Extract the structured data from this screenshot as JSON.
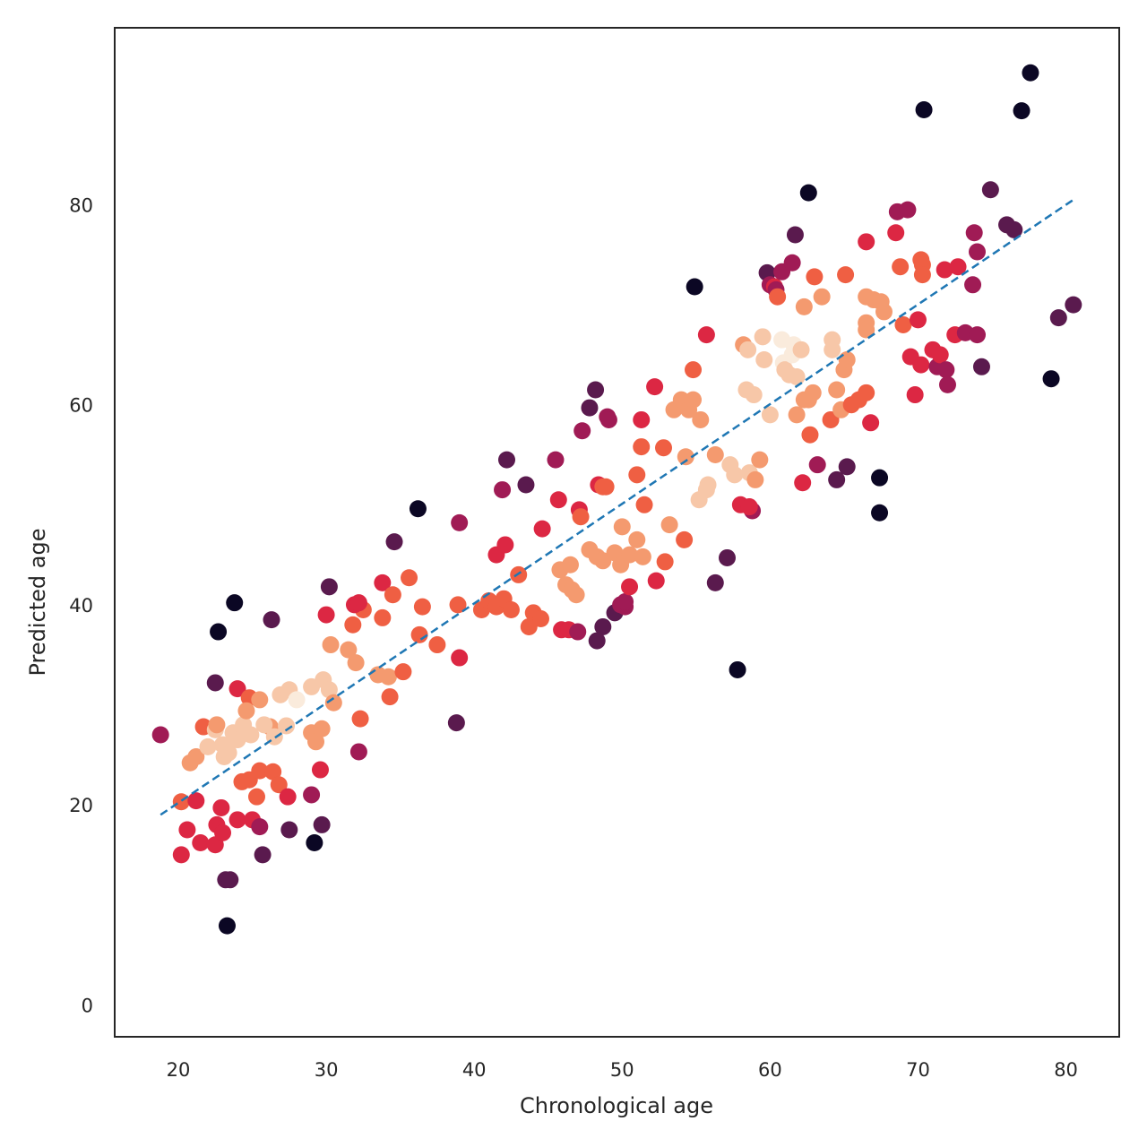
{
  "chart_data": {
    "type": "scatter",
    "title": "",
    "xlabel": "Chronological age",
    "ylabel": "Predicted age",
    "xlim": [
      15.7,
      83.6
    ],
    "ylim": [
      -3.2,
      97.7
    ],
    "xticks": [
      20,
      30,
      40,
      50,
      60,
      70,
      80
    ],
    "yticks": [
      0,
      20,
      40,
      60,
      80
    ],
    "grid": false,
    "legend": "none",
    "reference_line": {
      "x": [
        18.8,
        80.5
      ],
      "y": [
        19.0,
        80.5
      ],
      "color": "#1f77b4",
      "style": "dashed"
    },
    "color_scale": [
      "#0b0724",
      "#5a1a4e",
      "#a01b55",
      "#dc2743",
      "#ef5f43",
      "#f49a6f",
      "#f7c7a8",
      "#faebdc"
    ],
    "points": [
      [
        18.8,
        27.0,
        2
      ],
      [
        20.2,
        15.0,
        3
      ],
      [
        20.6,
        17.5,
        3
      ],
      [
        21.5,
        16.2,
        3
      ],
      [
        22.5,
        16.0,
        3
      ],
      [
        22.6,
        18.0,
        3
      ],
      [
        23.0,
        17.2,
        3
      ],
      [
        23.2,
        12.5,
        1
      ],
      [
        23.5,
        12.5,
        1
      ],
      [
        23.3,
        7.9,
        0
      ],
      [
        24.0,
        18.5,
        3
      ],
      [
        24.0,
        31.6,
        3
      ],
      [
        23.8,
        40.2,
        0
      ],
      [
        22.7,
        37.3,
        0
      ],
      [
        22.5,
        32.2,
        1
      ],
      [
        25.0,
        18.5,
        3
      ],
      [
        25.5,
        17.8,
        2
      ],
      [
        25.7,
        15.0,
        1
      ],
      [
        26.3,
        38.5,
        1
      ],
      [
        27.5,
        17.5,
        1
      ],
      [
        29.2,
        16.2,
        0
      ],
      [
        29.0,
        21.0,
        2
      ],
      [
        29.7,
        18.0,
        1
      ],
      [
        30.0,
        39.0,
        3
      ],
      [
        30.2,
        41.8,
        1
      ],
      [
        29.6,
        23.5,
        3
      ],
      [
        32.2,
        25.3,
        2
      ],
      [
        32.3,
        28.6,
        4
      ],
      [
        33.8,
        42.2,
        3
      ],
      [
        34.5,
        41.0,
        4
      ],
      [
        35.6,
        42.7,
        4
      ],
      [
        34.6,
        46.3,
        1
      ],
      [
        36.2,
        49.6,
        0
      ],
      [
        39.0,
        48.2,
        2
      ],
      [
        38.8,
        28.2,
        1
      ],
      [
        39.0,
        34.7,
        3
      ],
      [
        21.7,
        27.8,
        4
      ],
      [
        20.2,
        20.3,
        4
      ],
      [
        21.2,
        20.4,
        3
      ],
      [
        22.9,
        19.7,
        3
      ],
      [
        24.3,
        22.3,
        4
      ],
      [
        24.8,
        22.5,
        4
      ],
      [
        25.3,
        20.8,
        4
      ],
      [
        25.5,
        23.4,
        4
      ],
      [
        26.4,
        23.3,
        4
      ],
      [
        26.8,
        22.0,
        4
      ],
      [
        27.4,
        20.8,
        3
      ],
      [
        24.8,
        30.7,
        4
      ],
      [
        25.5,
        30.5,
        5
      ],
      [
        26.2,
        27.8,
        5
      ],
      [
        26.9,
        31.0,
        6
      ],
      [
        27.5,
        31.5,
        6
      ],
      [
        28.0,
        30.5,
        7
      ],
      [
        29.0,
        31.8,
        6
      ],
      [
        29.8,
        32.5,
        6
      ],
      [
        30.2,
        31.5,
        6
      ],
      [
        30.5,
        30.2,
        5
      ],
      [
        29.0,
        27.2,
        5
      ],
      [
        29.3,
        26.3,
        5
      ],
      [
        29.7,
        27.6,
        5
      ],
      [
        30.3,
        36.0,
        5
      ],
      [
        31.5,
        35.5,
        5
      ],
      [
        32.0,
        34.2,
        5
      ],
      [
        31.8,
        38.0,
        4
      ],
      [
        32.5,
        39.5,
        4
      ],
      [
        33.8,
        38.7,
        4
      ],
      [
        31.9,
        40.0,
        3
      ],
      [
        32.2,
        40.2,
        3
      ],
      [
        33.5,
        33.0,
        5
      ],
      [
        34.2,
        32.8,
        5
      ],
      [
        35.2,
        33.3,
        4
      ],
      [
        34.3,
        30.8,
        4
      ],
      [
        36.3,
        37.0,
        4
      ],
      [
        36.5,
        39.8,
        4
      ],
      [
        37.5,
        36.0,
        4
      ],
      [
        38.9,
        40.0,
        4
      ],
      [
        20.8,
        24.2,
        5
      ],
      [
        21.2,
        24.8,
        5
      ],
      [
        22.0,
        25.8,
        6
      ],
      [
        22.5,
        27.5,
        6
      ],
      [
        22.6,
        28.0,
        5
      ],
      [
        23.0,
        26.0,
        6
      ],
      [
        23.1,
        24.8,
        6
      ],
      [
        23.4,
        25.2,
        6
      ],
      [
        23.7,
        27.2,
        6
      ],
      [
        24.0,
        26.5,
        6
      ],
      [
        24.4,
        28.0,
        6
      ],
      [
        24.6,
        29.4,
        5
      ],
      [
        24.9,
        27.0,
        6
      ],
      [
        25.8,
        28.0,
        6
      ],
      [
        26.5,
        26.8,
        6
      ],
      [
        27.3,
        27.9,
        6
      ],
      [
        40.5,
        39.5,
        4
      ],
      [
        41.0,
        40.4,
        4
      ],
      [
        41.5,
        39.8,
        4
      ],
      [
        42.0,
        40.6,
        4
      ],
      [
        42.5,
        39.5,
        4
      ],
      [
        41.5,
        45.0,
        3
      ],
      [
        42.1,
        46.0,
        3
      ],
      [
        42.2,
        54.5,
        1
      ],
      [
        41.9,
        51.5,
        2
      ],
      [
        43.0,
        43.0,
        4
      ],
      [
        43.5,
        52.0,
        1
      ],
      [
        43.7,
        37.8,
        4
      ],
      [
        44.0,
        39.2,
        4
      ],
      [
        44.5,
        38.6,
        4
      ],
      [
        44.6,
        47.6,
        3
      ],
      [
        45.5,
        54.5,
        2
      ],
      [
        45.7,
        50.5,
        3
      ],
      [
        45.8,
        43.5,
        5
      ],
      [
        46.2,
        42.0,
        5
      ],
      [
        46.5,
        44.0,
        5
      ],
      [
        46.6,
        41.5,
        5
      ],
      [
        46.9,
        41.0,
        5
      ],
      [
        45.9,
        37.5,
        3
      ],
      [
        46.4,
        37.5,
        3
      ],
      [
        47.0,
        37.3,
        2
      ],
      [
        47.1,
        49.5,
        3
      ],
      [
        47.2,
        48.8,
        4
      ],
      [
        47.3,
        57.4,
        2
      ],
      [
        47.8,
        59.7,
        1
      ],
      [
        47.8,
        45.5,
        5
      ],
      [
        48.3,
        44.8,
        5
      ],
      [
        48.2,
        61.5,
        1
      ],
      [
        48.4,
        52.0,
        3
      ],
      [
        48.7,
        51.8,
        4
      ],
      [
        48.9,
        51.8,
        4
      ],
      [
        49.0,
        58.8,
        2
      ],
      [
        49.1,
        58.5,
        2
      ],
      [
        48.7,
        44.4,
        5
      ],
      [
        49.5,
        45.2,
        5
      ],
      [
        49.9,
        44.0,
        5
      ],
      [
        50.0,
        47.8,
        5
      ],
      [
        50.5,
        45.0,
        5
      ],
      [
        51.0,
        46.5,
        5
      ],
      [
        51.4,
        44.8,
        5
      ],
      [
        51.0,
        53.0,
        4
      ],
      [
        51.3,
        55.8,
        4
      ],
      [
        51.3,
        58.5,
        3
      ],
      [
        51.5,
        50.0,
        4
      ],
      [
        48.3,
        36.4,
        1
      ],
      [
        48.7,
        37.8,
        1
      ],
      [
        49.5,
        39.2,
        1
      ],
      [
        49.9,
        40.0,
        2
      ],
      [
        50.2,
        39.8,
        2
      ],
      [
        50.2,
        40.3,
        2
      ],
      [
        50.5,
        41.8,
        3
      ],
      [
        52.3,
        42.4,
        3
      ],
      [
        52.2,
        61.8,
        3
      ],
      [
        52.9,
        44.3,
        4
      ],
      [
        52.8,
        55.7,
        4
      ],
      [
        53.2,
        48.0,
        5
      ],
      [
        53.5,
        59.5,
        5
      ],
      [
        54.0,
        60.5,
        5
      ],
      [
        54.2,
        46.5,
        4
      ],
      [
        54.3,
        54.8,
        5
      ],
      [
        54.5,
        59.5,
        5
      ],
      [
        54.8,
        60.5,
        5
      ],
      [
        54.8,
        63.5,
        4
      ],
      [
        54.9,
        71.8,
        0
      ],
      [
        55.2,
        50.5,
        6
      ],
      [
        55.3,
        58.5,
        5
      ],
      [
        55.7,
        51.5,
        6
      ],
      [
        55.8,
        52.0,
        6
      ],
      [
        55.7,
        67.0,
        3
      ],
      [
        56.3,
        55.0,
        5
      ],
      [
        56.3,
        42.2,
        1
      ],
      [
        57.1,
        44.7,
        1
      ],
      [
        57.3,
        54.0,
        6
      ],
      [
        57.6,
        53.0,
        6
      ],
      [
        57.8,
        33.5,
        0
      ],
      [
        58.0,
        50.0,
        3
      ],
      [
        58.2,
        66.0,
        5
      ],
      [
        58.4,
        61.5,
        6
      ],
      [
        58.5,
        65.5,
        6
      ],
      [
        58.6,
        53.2,
        6
      ],
      [
        58.8,
        49.4,
        2
      ],
      [
        58.6,
        49.8,
        3
      ],
      [
        58.9,
        61.0,
        6
      ],
      [
        59.0,
        52.5,
        5
      ],
      [
        59.3,
        54.5,
        5
      ],
      [
        59.5,
        66.8,
        6
      ],
      [
        59.6,
        64.5,
        6
      ],
      [
        60.0,
        59.0,
        6
      ],
      [
        59.8,
        73.2,
        1
      ],
      [
        60.0,
        72.0,
        2
      ],
      [
        60.3,
        71.8,
        3
      ],
      [
        60.4,
        71.5,
        2
      ],
      [
        60.5,
        70.8,
        4
      ],
      [
        60.8,
        73.3,
        2
      ],
      [
        60.8,
        66.5,
        7
      ],
      [
        60.9,
        64.2,
        7
      ],
      [
        61.0,
        63.5,
        6
      ],
      [
        61.3,
        63.0,
        6
      ],
      [
        61.5,
        65.0,
        7
      ],
      [
        61.6,
        66.0,
        7
      ],
      [
        61.8,
        62.8,
        6
      ],
      [
        61.8,
        59.0,
        5
      ],
      [
        62.1,
        65.5,
        6
      ],
      [
        62.3,
        60.5,
        5
      ],
      [
        61.5,
        74.2,
        2
      ],
      [
        61.7,
        77.0,
        1
      ],
      [
        62.3,
        69.8,
        5
      ],
      [
        62.6,
        81.2,
        0
      ],
      [
        62.6,
        60.5,
        5
      ],
      [
        62.7,
        57.0,
        4
      ],
      [
        62.9,
        61.2,
        5
      ],
      [
        63.0,
        72.8,
        4
      ],
      [
        63.5,
        70.8,
        5
      ],
      [
        63.2,
        54.0,
        2
      ],
      [
        62.2,
        52.2,
        3
      ],
      [
        64.1,
        58.5,
        4
      ],
      [
        64.2,
        66.5,
        6
      ],
      [
        64.2,
        65.5,
        6
      ],
      [
        64.5,
        61.5,
        5
      ],
      [
        64.5,
        52.5,
        1
      ],
      [
        64.8,
        59.5,
        5
      ],
      [
        65.0,
        63.5,
        5
      ],
      [
        65.2,
        64.5,
        5
      ],
      [
        65.1,
        73.0,
        4
      ],
      [
        65.2,
        53.8,
        1
      ],
      [
        65.5,
        60.0,
        4
      ],
      [
        66.0,
        60.5,
        4
      ],
      [
        66.5,
        61.2,
        4
      ],
      [
        66.5,
        70.8,
        5
      ],
      [
        66.5,
        68.2,
        5
      ],
      [
        66.5,
        67.5,
        5
      ],
      [
        66.5,
        76.3,
        3
      ],
      [
        66.8,
        58.2,
        3
      ],
      [
        67.0,
        70.5,
        5
      ],
      [
        67.5,
        70.3,
        5
      ],
      [
        67.7,
        69.3,
        5
      ],
      [
        67.4,
        52.7,
        0
      ],
      [
        67.4,
        49.2,
        0
      ],
      [
        68.5,
        77.2,
        3
      ],
      [
        68.6,
        79.3,
        2
      ],
      [
        68.8,
        73.8,
        4
      ],
      [
        69.0,
        68.0,
        4
      ],
      [
        69.3,
        79.5,
        2
      ],
      [
        69.5,
        64.8,
        3
      ],
      [
        69.8,
        61.0,
        3
      ],
      [
        70.0,
        68.5,
        3
      ],
      [
        70.2,
        74.5,
        4
      ],
      [
        70.3,
        74.0,
        4
      ],
      [
        70.3,
        73.0,
        4
      ],
      [
        70.2,
        64.0,
        3
      ],
      [
        70.4,
        89.5,
        0
      ],
      [
        71.0,
        65.5,
        3
      ],
      [
        71.3,
        63.8,
        2
      ],
      [
        71.5,
        65.0,
        3
      ],
      [
        71.8,
        73.5,
        3
      ],
      [
        71.9,
        63.5,
        2
      ],
      [
        72.0,
        62.0,
        2
      ],
      [
        72.5,
        67.0,
        3
      ],
      [
        72.7,
        73.8,
        3
      ],
      [
        73.2,
        67.2,
        2
      ],
      [
        73.8,
        77.2,
        2
      ],
      [
        73.7,
        72.0,
        2
      ],
      [
        74.0,
        75.3,
        2
      ],
      [
        74.0,
        67.0,
        2
      ],
      [
        74.3,
        63.8,
        1
      ],
      [
        74.9,
        81.5,
        1
      ],
      [
        76.0,
        78.0,
        1
      ],
      [
        76.5,
        77.5,
        1
      ],
      [
        77.0,
        89.4,
        0
      ],
      [
        77.6,
        93.2,
        0
      ],
      [
        79.0,
        62.6,
        0
      ],
      [
        79.5,
        68.7,
        1
      ],
      [
        80.5,
        70.0,
        1
      ]
    ]
  }
}
